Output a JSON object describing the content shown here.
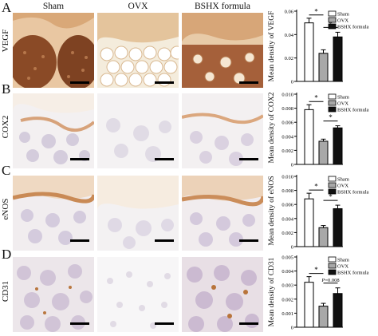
{
  "columns": [
    "Sham",
    "OVX",
    "BSHX formula"
  ],
  "panels": [
    {
      "letter": "A",
      "marker": "VEGF"
    },
    {
      "letter": "B",
      "marker": "COX2"
    },
    {
      "letter": "C",
      "marker": "eNOS"
    },
    {
      "letter": "D",
      "marker": "CD31"
    }
  ],
  "colors": {
    "sham": "#ffffff",
    "ovx": "#a8a8a8",
    "bshx": "#111111"
  },
  "chart_data": [
    {
      "type": "bar",
      "categories": [
        "Sham",
        "OVX",
        "BSHX formula"
      ],
      "values": [
        0.05,
        0.024,
        0.038
      ],
      "errors": [
        0.004,
        0.003,
        0.004
      ],
      "ylabel": "Mean density of VEGF",
      "ylim": [
        0,
        0.06
      ],
      "yticks": [
        "0",
        "0.02",
        "0.04",
        "0.06"
      ],
      "legend": [
        "Sham",
        "OVX",
        "BSHX formula"
      ],
      "annotations": [
        {
          "from": 0,
          "to": 1,
          "label": "*"
        },
        {
          "from": 1,
          "to": 2,
          "label": "*"
        }
      ]
    },
    {
      "type": "bar",
      "categories": [
        "Sham",
        "OVX",
        "BSHX formula"
      ],
      "values": [
        0.0078,
        0.0033,
        0.0052
      ],
      "errors": [
        0.0007,
        0.0003,
        0.0003
      ],
      "ylabel": "Mean density of COX2",
      "ylim": [
        0,
        0.01
      ],
      "yticks": [
        "0",
        "0.002",
        "0.004",
        "0.006",
        "0.008",
        "0.010"
      ],
      "legend": [
        "Sham",
        "OVX",
        "BSHX formula"
      ],
      "annotations": [
        {
          "from": 0,
          "to": 1,
          "label": "*"
        },
        {
          "from": 1,
          "to": 2,
          "label": "*"
        }
      ]
    },
    {
      "type": "bar",
      "categories": [
        "Sham",
        "OVX",
        "BSHX formula"
      ],
      "values": [
        0.0068,
        0.0027,
        0.0054
      ],
      "errors": [
        0.0008,
        0.0003,
        0.0005
      ],
      "ylabel": "Mean density of eNOS",
      "ylim": [
        0,
        0.01
      ],
      "yticks": [
        "0",
        "0.002",
        "0.004",
        "0.006",
        "0.008",
        "0.010"
      ],
      "legend": [
        "Sham",
        "OVX",
        "BSHX formula"
      ],
      "annotations": [
        {
          "from": 0,
          "to": 1,
          "label": "*"
        },
        {
          "from": 1,
          "to": 2,
          "label": "*"
        }
      ]
    },
    {
      "type": "bar",
      "categories": [
        "Sham",
        "OVX",
        "BSHX formula"
      ],
      "values": [
        0.0032,
        0.0015,
        0.0024
      ],
      "errors": [
        0.0004,
        0.0002,
        0.0004
      ],
      "ylabel": "Mean density of CD31",
      "ylim": [
        0,
        0.005
      ],
      "yticks": [
        "0",
        "0.001",
        "0.002",
        "0.003",
        "0.004",
        "0.005"
      ],
      "legend": [
        "Sham",
        "OVX",
        "BSHX formula"
      ],
      "annotations": [
        {
          "from": 0,
          "to": 1,
          "label": "*"
        },
        {
          "from": 1,
          "to": 2,
          "label": "P=0.008",
          "italic_prefix": "P"
        }
      ]
    }
  ]
}
